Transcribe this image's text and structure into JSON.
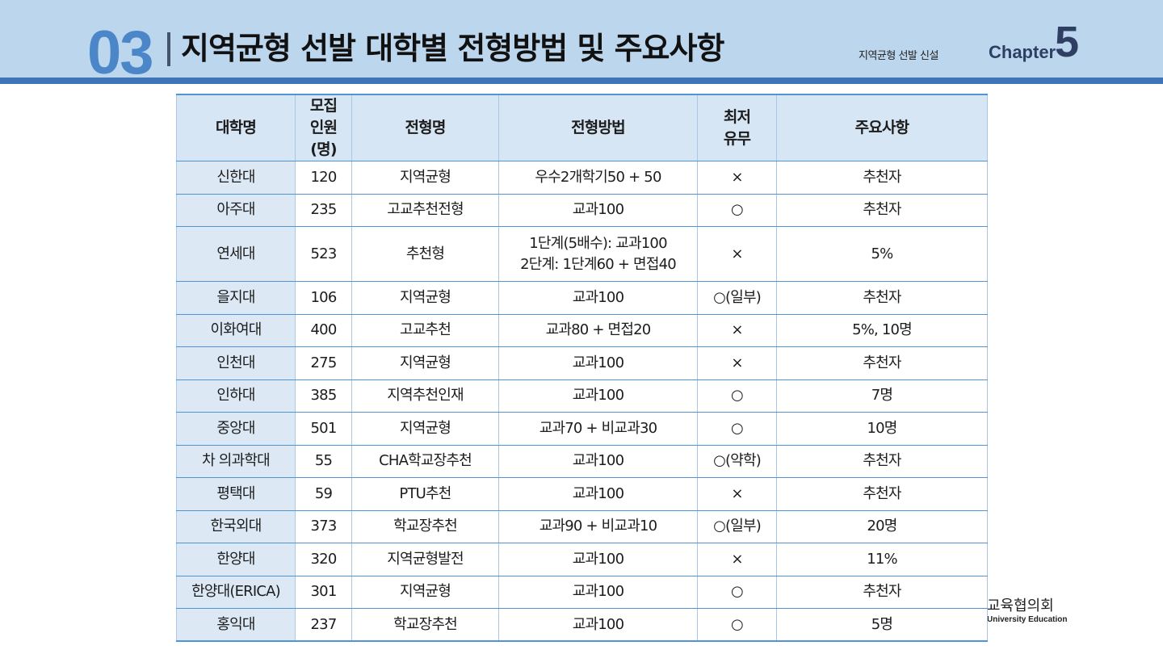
{
  "header": {
    "section_number": "03",
    "title": "지역균형 선발 대학별 전형방법 및 주요사항",
    "subtitle": "지역균형 선발 신설",
    "chapter_label": "Chapter",
    "chapter_number": "5"
  },
  "logo": {
    "text_ko": "교육협의회",
    "text_en": "University Education"
  },
  "table": {
    "headers": [
      "대학명",
      "모집\n인원(명)",
      "전형명",
      "전형방법",
      "최저\n유무",
      "주요사항"
    ],
    "rows": [
      [
        "신한대",
        "120",
        "지역균형",
        "우수2개학기50 + 50",
        "×",
        "추천자"
      ],
      [
        "아주대",
        "235",
        "고교추천전형",
        "교과100",
        "○",
        "추천자"
      ],
      [
        "연세대",
        "523",
        "추천형",
        "1단계(5배수): 교과100\n2단계: 1단계60 + 면접40",
        "×",
        "5%"
      ],
      [
        "을지대",
        "106",
        "지역균형",
        "교과100",
        "○(일부)",
        "추천자"
      ],
      [
        "이화여대",
        "400",
        "고교추천",
        "교과80 + 면접20",
        "×",
        "5%, 10명"
      ],
      [
        "인천대",
        "275",
        "지역균형",
        "교과100",
        "×",
        "추천자"
      ],
      [
        "인하대",
        "385",
        "지역추천인재",
        "교과100",
        "○",
        "7명"
      ],
      [
        "중앙대",
        "501",
        "지역균형",
        "교과70 + 비교과30",
        "○",
        "10명"
      ],
      [
        "차 의과학대",
        "55",
        "CHA학교장추천",
        "교과100",
        "○(약학)",
        "추천자"
      ],
      [
        "평택대",
        "59",
        "PTU추천",
        "교과100",
        "×",
        "추천자"
      ],
      [
        "한국외대",
        "373",
        "학교장추천",
        "교과90 + 비교과10",
        "○(일부)",
        "20명"
      ],
      [
        "한양대",
        "320",
        "지역균형발전",
        "교과100",
        "×",
        "11%"
      ],
      [
        "한양대(ERICA)",
        "301",
        "지역균형",
        "교과100",
        "○",
        "추천자"
      ],
      [
        "홍익대",
        "237",
        "학교장추천",
        "교과100",
        "○",
        "5명"
      ]
    ]
  }
}
